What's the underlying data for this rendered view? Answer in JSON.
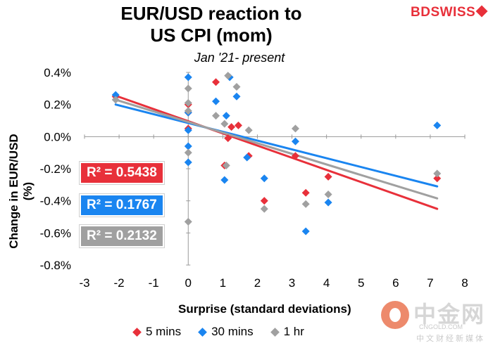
{
  "chart_data": {
    "type": "scatter",
    "title_line1": "EUR/USD reaction to",
    "title_line2": "US CPI (mom)",
    "subtitle": "Jan '21- present",
    "xlabel": "Surprise (standard deviations)",
    "ylabel": "Change in EUR/USD  (%)",
    "xlim": [
      -3,
      8
    ],
    "ylim": [
      -0.8,
      0.4
    ],
    "xticks": [
      "-3",
      "-2",
      "-1",
      "0",
      "1",
      "2",
      "3",
      "4",
      "5",
      "6",
      "7",
      "8"
    ],
    "yticks": [
      "0.4%",
      "0.2%",
      "0.0%",
      "-0.2%",
      "-0.4%",
      "-0.6%",
      "-0.8%"
    ],
    "series": [
      {
        "name": "5 mins",
        "color": "#e8303a",
        "points": [
          [
            -2.1,
            0.25
          ],
          [
            0,
            0.15
          ],
          [
            0,
            0.05
          ],
          [
            0,
            0.2
          ],
          [
            0.8,
            0.34
          ],
          [
            1.05,
            -0.18
          ],
          [
            1.15,
            -0.01
          ],
          [
            1.25,
            0.06
          ],
          [
            1.45,
            0.07
          ],
          [
            1.75,
            -0.12
          ],
          [
            2.2,
            -0.4
          ],
          [
            3.1,
            -0.12
          ],
          [
            3.4,
            -0.35
          ],
          [
            4.05,
            -0.25
          ],
          [
            7.2,
            -0.26
          ]
        ],
        "trend": {
          "x": [
            -2.1,
            7.2
          ],
          "y": [
            0.255,
            -0.45
          ]
        },
        "r2": "R² = 0.5438"
      },
      {
        "name": "30 mins",
        "color": "#1a85f0",
        "points": [
          [
            -2.1,
            0.26
          ],
          [
            0,
            0.37
          ],
          [
            0,
            0.15
          ],
          [
            0,
            0.04
          ],
          [
            0,
            -0.06
          ],
          [
            0,
            -0.16
          ],
          [
            0.8,
            0.22
          ],
          [
            1.05,
            -0.27
          ],
          [
            1.1,
            0.13
          ],
          [
            1.2,
            0.37
          ],
          [
            1.4,
            0.25
          ],
          [
            1.7,
            -0.13
          ],
          [
            2.2,
            -0.26
          ],
          [
            3.1,
            -0.03
          ],
          [
            3.4,
            -0.59
          ],
          [
            4.05,
            -0.41
          ],
          [
            7.2,
            0.07
          ]
        ],
        "trend": {
          "x": [
            -2.1,
            7.2
          ],
          "y": [
            0.2,
            -0.31
          ]
        },
        "r2": "R² = 0.1767"
      },
      {
        "name": "1 hr",
        "color": "#a0a0a0",
        "points": [
          [
            -2.1,
            0.23
          ],
          [
            0,
            0.3
          ],
          [
            0,
            0.21
          ],
          [
            0,
            0.16
          ],
          [
            0,
            -0.1
          ],
          [
            0,
            -0.53
          ],
          [
            0.8,
            0.13
          ],
          [
            1.05,
            0.08
          ],
          [
            1.1,
            -0.18
          ],
          [
            1.15,
            0.38
          ],
          [
            1.4,
            0.31
          ],
          [
            1.75,
            0.04
          ],
          [
            2.2,
            -0.45
          ],
          [
            3.1,
            0.05
          ],
          [
            3.4,
            -0.42
          ],
          [
            4.05,
            -0.36
          ],
          [
            7.2,
            -0.23
          ]
        ],
        "trend": {
          "x": [
            -2.1,
            7.2
          ],
          "y": [
            0.23,
            -0.385
          ]
        },
        "r2": "R² = 0.2132"
      }
    ]
  },
  "brand": "BDSWISS",
  "watermark": {
    "cn_name": "中金网",
    "site": "CNGOLD.COM",
    "tagline": "中文财经新媒体"
  }
}
